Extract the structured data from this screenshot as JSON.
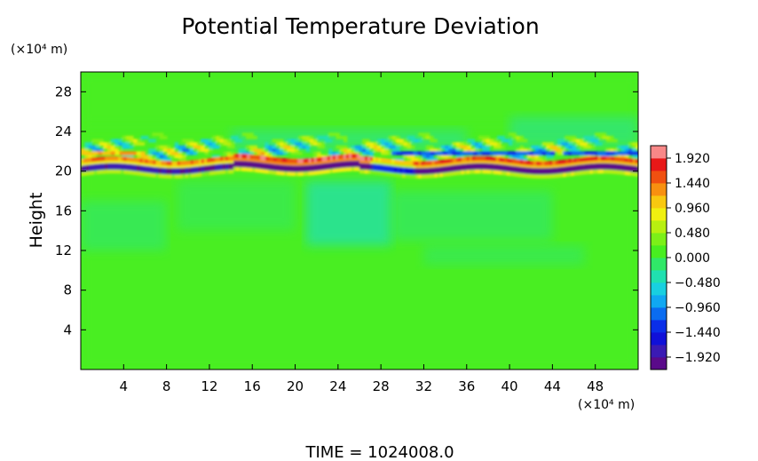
{
  "chart_data": {
    "type": "heatmap",
    "title": "Potential Temperature Deviation",
    "ylabel": "Height",
    "xunit": "(×10⁴ m)",
    "yunit": "(×10⁴ m)",
    "footer": "TIME  =  1024008.0",
    "xlim": [
      0,
      52
    ],
    "ylim": [
      0,
      30
    ],
    "xticks": [
      4,
      8,
      12,
      16,
      20,
      24,
      28,
      32,
      36,
      40,
      44,
      48
    ],
    "yticks": [
      4,
      8,
      12,
      16,
      20,
      24,
      28
    ],
    "colorbar": {
      "range": [
        -2.16,
        2.16
      ],
      "tick_values": [
        1.92,
        1.44,
        0.96,
        0.48,
        0.0,
        -0.48,
        -0.96,
        -1.44,
        -1.92
      ],
      "tick_labels": [
        "1.920",
        "1.440",
        "0.960",
        "0.480",
        "0.000",
        "−0.480",
        "−0.960",
        "−1.440",
        "−1.920"
      ],
      "levels": 18,
      "colors": [
        "#5a0a8a",
        "#3a1ab4",
        "#1010d8",
        "#0a2ee8",
        "#0a6cf0",
        "#10a8f2",
        "#18d0e0",
        "#20e0b0",
        "#30e868",
        "#48ee20",
        "#7cf018",
        "#b8f010",
        "#f0f010",
        "#f8c810",
        "#f89010",
        "#f05010",
        "#e81818",
        "#f88888"
      ]
    },
    "background_value": 0.15,
    "features": [
      {
        "kind": "strong_negative_band",
        "x_range": [
          0,
          52
        ],
        "y": 20.3
      },
      {
        "kind": "positive_band_above",
        "x_range": [
          0,
          52
        ],
        "y": 21.0
      },
      {
        "kind": "gravity_wave_region",
        "x_range": [
          0,
          52
        ],
        "y_range": [
          21,
          25
        ]
      },
      {
        "kind": "weak_negative_region",
        "x_range": [
          20,
          32
        ],
        "y_range": [
          12,
          19
        ]
      }
    ]
  }
}
